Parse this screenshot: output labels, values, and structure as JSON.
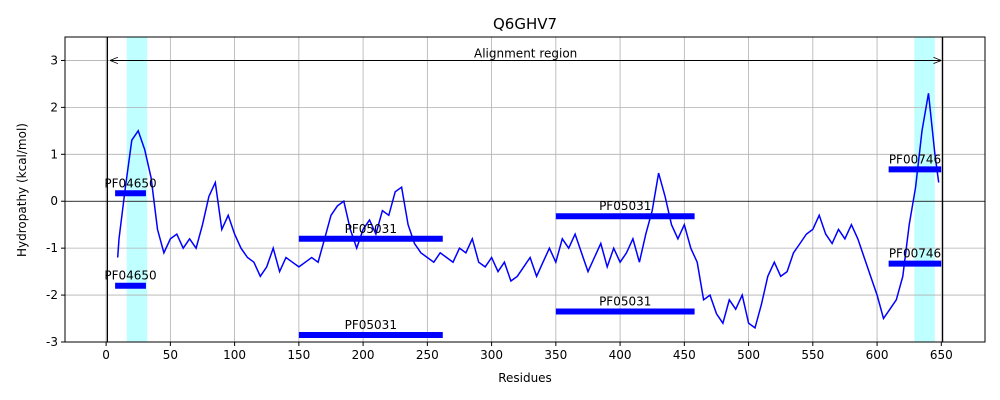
{
  "chart_data": {
    "type": "line",
    "title": "Q6GHV7",
    "x_label": "Residues",
    "y_label": "Hydropathy (kcal/mol)",
    "xlim": [
      -32,
      684
    ],
    "ylim": [
      -3,
      3.5
    ],
    "xticks": [
      0,
      50,
      100,
      150,
      200,
      250,
      300,
      350,
      400,
      450,
      500,
      550,
      600,
      650
    ],
    "yticks": [
      -3,
      -2,
      -1,
      0,
      1,
      2,
      3
    ],
    "grid": true,
    "hline": 0,
    "x": [
      9,
      10,
      15,
      20,
      25,
      30,
      35,
      40,
      45,
      50,
      55,
      60,
      65,
      70,
      75,
      80,
      85,
      90,
      95,
      100,
      105,
      110,
      115,
      120,
      125,
      130,
      135,
      140,
      145,
      150,
      155,
      160,
      165,
      170,
      175,
      180,
      185,
      190,
      195,
      200,
      205,
      210,
      215,
      220,
      225,
      230,
      235,
      240,
      245,
      250,
      255,
      260,
      265,
      270,
      275,
      280,
      285,
      290,
      295,
      300,
      305,
      310,
      315,
      320,
      325,
      330,
      335,
      340,
      345,
      350,
      355,
      360,
      365,
      370,
      375,
      380,
      385,
      390,
      395,
      400,
      405,
      410,
      415,
      420,
      425,
      430,
      435,
      440,
      445,
      450,
      455,
      460,
      465,
      470,
      475,
      480,
      485,
      490,
      495,
      500,
      505,
      510,
      515,
      520,
      525,
      530,
      535,
      540,
      545,
      550,
      555,
      560,
      565,
      570,
      575,
      580,
      585,
      590,
      595,
      600,
      605,
      610,
      615,
      620,
      625,
      630,
      635,
      640,
      645,
      648
    ],
    "series": [
      {
        "color": "#0000ff",
        "values": [
          -1.2,
          -0.8,
          0.3,
          1.3,
          1.5,
          1.1,
          0.5,
          -0.6,
          -1.1,
          -0.8,
          -0.7,
          -1.0,
          -0.8,
          -1.0,
          -0.5,
          0.1,
          0.4,
          -0.6,
          -0.3,
          -0.7,
          -1.0,
          -1.2,
          -1.3,
          -1.6,
          -1.4,
          -1.0,
          -1.5,
          -1.2,
          -1.3,
          -1.4,
          -1.3,
          -1.2,
          -1.3,
          -0.8,
          -0.3,
          -0.1,
          0.0,
          -0.6,
          -1.0,
          -0.6,
          -0.4,
          -0.7,
          -0.2,
          -0.3,
          0.2,
          0.3,
          -0.5,
          -0.9,
          -1.1,
          -1.2,
          -1.3,
          -1.1,
          -1.2,
          -1.3,
          -1.0,
          -1.1,
          -0.8,
          -1.3,
          -1.4,
          -1.2,
          -1.5,
          -1.3,
          -1.7,
          -1.6,
          -1.4,
          -1.2,
          -1.6,
          -1.3,
          -1.0,
          -1.3,
          -0.8,
          -1.0,
          -0.7,
          -1.1,
          -1.5,
          -1.2,
          -0.9,
          -1.4,
          -1.0,
          -1.3,
          -1.1,
          -0.8,
          -1.3,
          -0.7,
          -0.2,
          0.6,
          0.1,
          -0.5,
          -0.8,
          -0.5,
          -1.0,
          -1.3,
          -2.1,
          -2.0,
          -2.4,
          -2.6,
          -2.1,
          -2.3,
          -2.0,
          -2.6,
          -2.7,
          -2.2,
          -1.6,
          -1.3,
          -1.6,
          -1.5,
          -1.1,
          -0.9,
          -0.7,
          -0.6,
          -0.3,
          -0.7,
          -0.9,
          -0.6,
          -0.8,
          -0.5,
          -0.8,
          -1.2,
          -1.6,
          -2.0,
          -2.5,
          -2.3,
          -2.1,
          -1.6,
          -0.5,
          0.3,
          1.5,
          2.3,
          1.0,
          0.4
        ]
      }
    ],
    "spans": [
      {
        "start": 16,
        "end": 32,
        "color": "#c0ffff"
      },
      {
        "start": 629,
        "end": 645,
        "color": "#c0ffff"
      }
    ],
    "vlines": [
      1,
      651
    ],
    "annotation": {
      "text": "Alignment region",
      "start": 3,
      "end": 650,
      "y": 3
    },
    "domains": [
      {
        "name": "PF04650",
        "start": 7,
        "end": 31,
        "y": 0.17
      },
      {
        "name": "PF04650",
        "start": 7,
        "end": 31,
        "y": -1.8
      },
      {
        "name": "PF05031",
        "start": 150,
        "end": 262,
        "y": -0.8
      },
      {
        "name": "PF05031",
        "start": 150,
        "end": 262,
        "y": -2.85
      },
      {
        "name": "PF05031",
        "start": 350,
        "end": 458,
        "y": -0.32
      },
      {
        "name": "PF05031",
        "start": 350,
        "end": 458,
        "y": -2.35
      },
      {
        "name": "PF00746",
        "start": 609,
        "end": 650,
        "y": 0.68
      },
      {
        "name": "PF00746",
        "start": 609,
        "end": 650,
        "y": -1.33
      }
    ],
    "domain_color": "#0000ff"
  }
}
